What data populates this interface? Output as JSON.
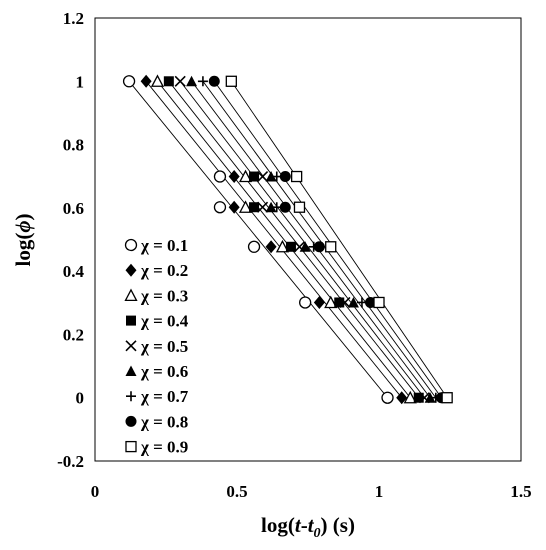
{
  "chart_data": {
    "type": "scatter",
    "xlabel_main": "log(",
    "xlabel_t": "t",
    "xlabel_dash": "-",
    "xlabel_t0": "t",
    "xlabel_t0_sub": "0",
    "xlabel_tail": ") (s)",
    "ylabel_main": "log(",
    "ylabel_phi": "ϕ",
    "ylabel_tail": ")",
    "xlim": [
      0,
      1.5
    ],
    "ylim": [
      -0.2,
      1.2
    ],
    "x_ticks": [
      "0",
      "0.5",
      "1",
      "1.5"
    ],
    "y_ticks": [
      "-0.2",
      "0",
      "0.2",
      "0.4",
      "0.6",
      "0.8",
      "1",
      "1.2"
    ],
    "grid": false,
    "legend_position": "lower-left",
    "y_levels": [
      1.0,
      0.699,
      0.602,
      0.477,
      0.301,
      0.0
    ],
    "series": [
      {
        "name": "χ = 0.1",
        "marker": "open-circle",
        "x": [
          0.12,
          0.44,
          0.44,
          0.56,
          0.74,
          1.03
        ]
      },
      {
        "name": "χ = 0.2",
        "marker": "diamond",
        "x": [
          0.18,
          0.49,
          0.49,
          0.62,
          0.79,
          1.08
        ]
      },
      {
        "name": "χ = 0.3",
        "marker": "open-triangle",
        "x": [
          0.22,
          0.53,
          0.53,
          0.66,
          0.83,
          1.11
        ]
      },
      {
        "name": "χ = 0.4",
        "marker": "square",
        "x": [
          0.26,
          0.56,
          0.56,
          0.69,
          0.86,
          1.14
        ]
      },
      {
        "name": "χ = 0.5",
        "marker": "cross",
        "x": [
          0.3,
          0.59,
          0.59,
          0.72,
          0.88,
          1.16
        ]
      },
      {
        "name": "χ = 0.6",
        "marker": "triangle",
        "x": [
          0.34,
          0.62,
          0.62,
          0.74,
          0.91,
          1.18
        ]
      },
      {
        "name": "χ = 0.7",
        "marker": "plus",
        "x": [
          0.38,
          0.64,
          0.64,
          0.77,
          0.94,
          1.2
        ]
      },
      {
        "name": "χ = 0.8",
        "marker": "circle",
        "x": [
          0.42,
          0.67,
          0.67,
          0.79,
          0.97,
          1.22
        ]
      },
      {
        "name": "χ = 0.9",
        "marker": "open-square",
        "x": [
          0.48,
          0.71,
          0.72,
          0.83,
          1.0,
          1.24
        ]
      }
    ]
  }
}
